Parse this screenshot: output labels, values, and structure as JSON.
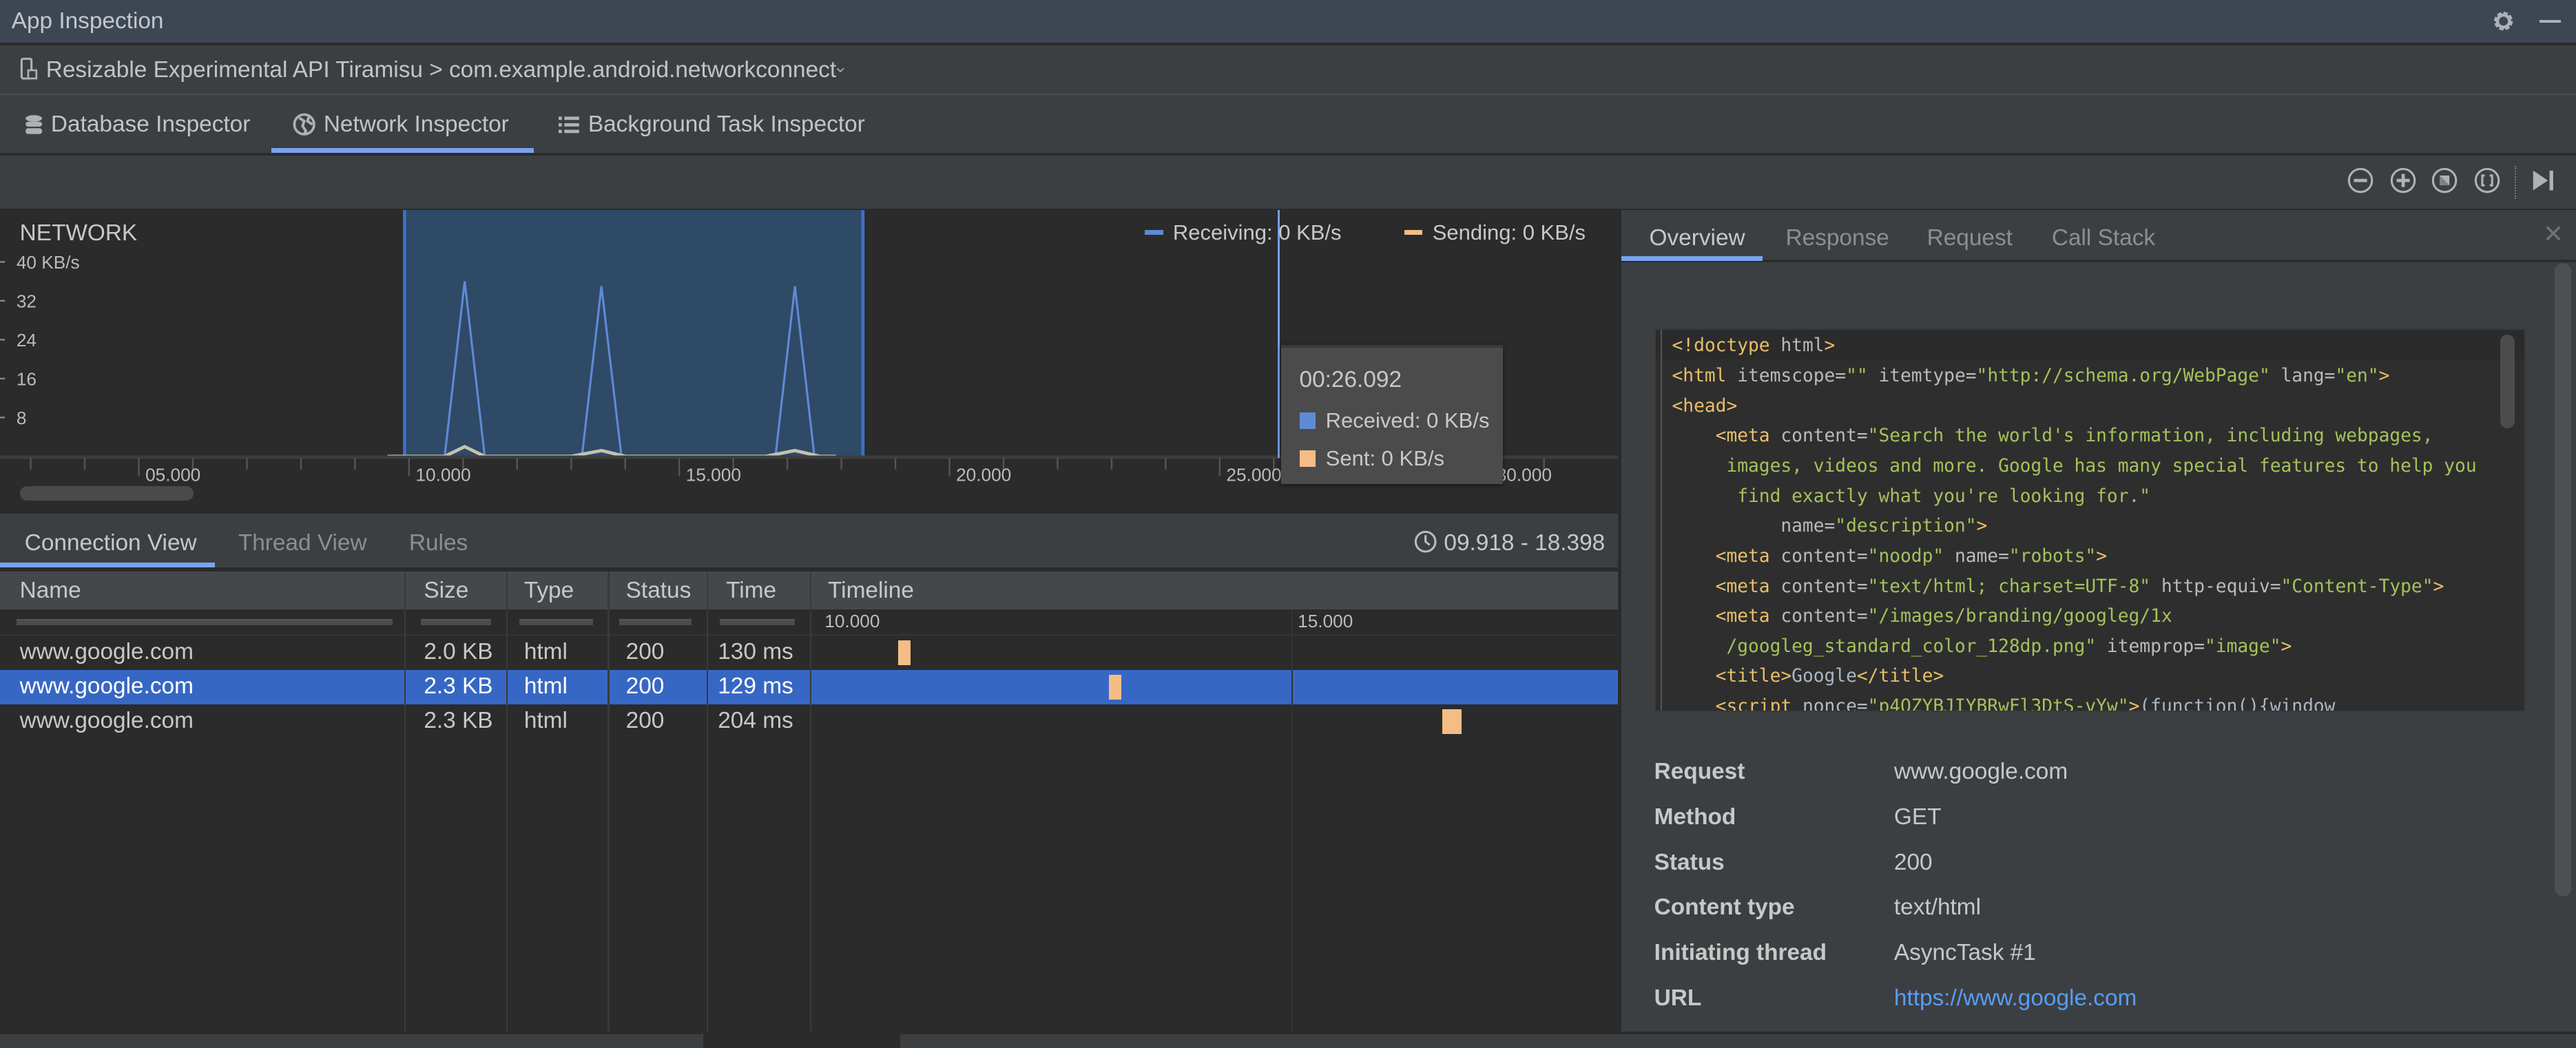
{
  "window": {
    "title": "App Inspection",
    "settings_icon": "gear-icon",
    "minimize_icon": "minimize-icon"
  },
  "device": {
    "label": "Resizable Experimental API Tiramisu > com.example.android.networkconnect",
    "icon": "device-icon"
  },
  "inspector_tabs": [
    {
      "label": "Database Inspector",
      "icon": "database-icon"
    },
    {
      "label": "Network Inspector",
      "icon": "globe-icon",
      "selected": true
    },
    {
      "label": "Background Task Inspector",
      "icon": "list-icon"
    }
  ],
  "toolbar": {
    "buttons": [
      "zoom-out-icon",
      "zoom-in-icon",
      "reset-zoom-icon",
      "zoom-to-selection-icon",
      "go-live-icon"
    ]
  },
  "network_chart": {
    "title": "NETWORK",
    "legend": {
      "receiving": "Receiving: 0 KB/s",
      "sending": "Sending: 0 KB/s"
    },
    "colors": {
      "receiving": "#5f8ad6",
      "sending": "#f4bd86",
      "selection": "#2e4a66"
    },
    "tooltip": {
      "time": "00:26.092",
      "received": "Received: 0 KB/s",
      "sent": "Sent: 0 KB/s"
    }
  },
  "chart_data": {
    "type": "line",
    "title": "NETWORK",
    "ylabel": "",
    "y_ticks": [
      "40 KB/s",
      "32",
      "24",
      "16",
      "8"
    ],
    "y_tick_values": [
      40,
      32,
      24,
      16,
      8
    ],
    "ylim": [
      0,
      40
    ],
    "x_ticks": [
      "05.000",
      "10.000",
      "15.000",
      "20.000",
      "25.000",
      "30.000"
    ],
    "x_tick_values": [
      5,
      10,
      15,
      20,
      25,
      30
    ],
    "xlim": [
      2.6,
      31.9
    ],
    "selection_range": [
      9.918,
      18.398
    ],
    "cursor": 26.092,
    "legend_position": "top-right",
    "series": [
      {
        "name": "Receiving",
        "color": "#5f8ad6",
        "x": [
          9.6,
          10.66,
          11.03,
          11.4,
          13.2,
          13.56,
          13.93,
          16.78,
          17.14,
          17.5,
          17.9
        ],
        "y": [
          0,
          0,
          36,
          0,
          0,
          35,
          0,
          0,
          35,
          0,
          0
        ]
      },
      {
        "name": "Sending",
        "color": "#f4bd86",
        "x": [
          9.6,
          10.66,
          11.03,
          11.4,
          13.0,
          13.56,
          14.0,
          16.6,
          17.14,
          17.6,
          17.9
        ],
        "y": [
          0,
          0,
          2,
          0,
          0,
          1.2,
          0,
          0,
          1.2,
          0,
          0
        ]
      }
    ]
  },
  "connection_tabs": [
    {
      "label": "Connection View",
      "selected": true
    },
    {
      "label": "Thread View"
    },
    {
      "label": "Rules"
    }
  ],
  "range_label": "09.918 - 18.398",
  "table": {
    "columns": [
      "Name",
      "Size",
      "Type",
      "Status",
      "Time",
      "Timeline"
    ],
    "timeline_ticks": [
      "10.000",
      "15.000"
    ],
    "rows": [
      {
        "name": "www.google.com",
        "size": "2.0 KB",
        "type": "html",
        "status": "200",
        "time": "130 ms",
        "start": 10.86,
        "duration": 0.13
      },
      {
        "name": "www.google.com",
        "size": "2.3 KB",
        "type": "html",
        "status": "200",
        "time": "129 ms",
        "start": 13.08,
        "duration": 0.129,
        "selected": true
      },
      {
        "name": "www.google.com",
        "size": "2.3 KB",
        "type": "html",
        "status": "200",
        "time": "204 ms",
        "start": 16.59,
        "duration": 0.204
      }
    ]
  },
  "detail_tabs": [
    {
      "label": "Overview",
      "selected": true
    },
    {
      "label": "Response"
    },
    {
      "label": "Request"
    },
    {
      "label": "Call Stack"
    }
  ],
  "code_lines": [
    [
      [
        "tag",
        "<!doctype"
      ],
      [
        "attr",
        " html"
      ],
      [
        "tag",
        ">"
      ]
    ],
    [
      [
        "tag",
        "<html"
      ],
      [
        "attr",
        " itemscope="
      ],
      [
        "val",
        "\"\""
      ],
      [
        "attr",
        " itemtype="
      ],
      [
        "val",
        "\"http://schema.org/WebPage\""
      ],
      [
        "attr",
        " lang="
      ],
      [
        "val",
        "\"en\""
      ],
      [
        "tag",
        ">"
      ]
    ],
    [
      [
        "tag",
        "<head>"
      ]
    ],
    [
      [
        "txt",
        "    "
      ],
      [
        "tag",
        "<meta"
      ],
      [
        "attr",
        " content="
      ],
      [
        "val",
        "\"Search the world's information, including webpages,"
      ]
    ],
    [
      [
        "val",
        "     images, videos and more. Google has many special features to help you"
      ]
    ],
    [
      [
        "val",
        "      find exactly what you're looking for.\""
      ]
    ],
    [
      [
        "attr",
        "          name="
      ],
      [
        "val",
        "\"description\""
      ],
      [
        "tag",
        ">"
      ]
    ],
    [
      [
        "txt",
        "    "
      ],
      [
        "tag",
        "<meta"
      ],
      [
        "attr",
        " content="
      ],
      [
        "val",
        "\"noodp\""
      ],
      [
        "attr",
        " name="
      ],
      [
        "val",
        "\"robots\""
      ],
      [
        "tag",
        ">"
      ]
    ],
    [
      [
        "txt",
        "    "
      ],
      [
        "tag",
        "<meta"
      ],
      [
        "attr",
        " content="
      ],
      [
        "val",
        "\"text/html; charset=UTF-8\""
      ],
      [
        "attr",
        " http-equiv="
      ],
      [
        "val",
        "\"Content-Type\""
      ],
      [
        "tag",
        ">"
      ]
    ],
    [
      [
        "txt",
        "    "
      ],
      [
        "tag",
        "<meta"
      ],
      [
        "attr",
        " content="
      ],
      [
        "val",
        "\"/images/branding/googleg/1x"
      ]
    ],
    [
      [
        "val",
        "     /googleg_standard_color_128dp.png\""
      ],
      [
        "attr",
        " itemprop="
      ],
      [
        "val",
        "\"image\""
      ],
      [
        "tag",
        ">"
      ]
    ],
    [
      [
        "txt",
        "    "
      ],
      [
        "tag",
        "<title>"
      ],
      [
        "txt",
        "Google"
      ],
      [
        "tag",
        "</title>"
      ]
    ],
    [
      [
        "txt",
        "    "
      ],
      [
        "tag",
        "<script"
      ],
      [
        "attr",
        " nonce="
      ],
      [
        "val",
        "\"p4QZYBJIYBRwFl3DtS-vYw\""
      ],
      [
        "tag",
        ">"
      ],
      [
        "txt",
        "(function(){window"
      ]
    ]
  ],
  "overview": [
    {
      "key": "Request",
      "value": "www.google.com"
    },
    {
      "key": "Method",
      "value": "GET"
    },
    {
      "key": "Status",
      "value": "200"
    },
    {
      "key": "Content type",
      "value": "text/html"
    },
    {
      "key": "Initiating thread",
      "value": "AsyncTask #1"
    },
    {
      "key": "URL",
      "value": "https://www.google.com",
      "link": true,
      "color": "#589df6"
    }
  ]
}
